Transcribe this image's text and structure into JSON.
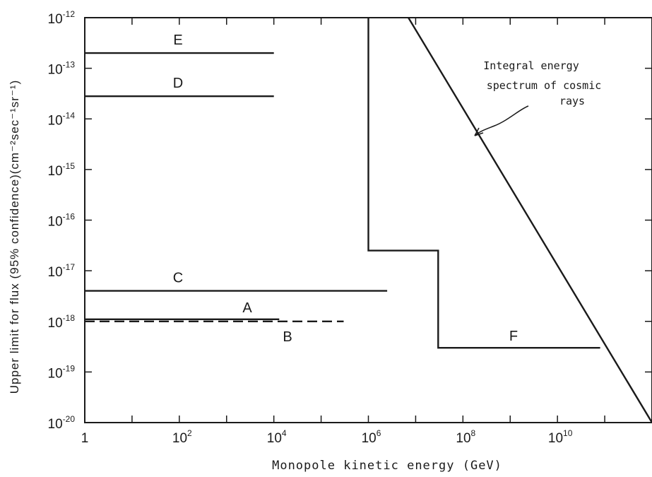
{
  "chart_data": {
    "type": "line",
    "xlabel": "Monopole kinetic energy (GeV)",
    "ylabel": "Upper limit for flux (95% confidence)(cm⁻²sec⁻¹sr⁻¹)",
    "xscale": "log",
    "yscale": "log",
    "xlim": [
      1,
      1000000000000.0
    ],
    "ylim": [
      1e-20,
      1e-12
    ],
    "xticks": [
      {
        "value": 1,
        "base": "1",
        "exp": ""
      },
      {
        "value": 100,
        "base": "10",
        "exp": "2"
      },
      {
        "value": 10000,
        "base": "10",
        "exp": "4"
      },
      {
        "value": 1000000,
        "base": "10",
        "exp": "6"
      },
      {
        "value": 100000000,
        "base": "10",
        "exp": "8"
      },
      {
        "value": 10000000000,
        "base": "10",
        "exp": "10"
      }
    ],
    "yticks": [
      {
        "value": 1e-12,
        "base": "10",
        "exp": "-12"
      },
      {
        "value": 1e-13,
        "base": "10",
        "exp": "-13"
      },
      {
        "value": 1e-14,
        "base": "10",
        "exp": "-14"
      },
      {
        "value": 1e-15,
        "base": "10",
        "exp": "-15"
      },
      {
        "value": 1e-16,
        "base": "10",
        "exp": "-16"
      },
      {
        "value": 1e-17,
        "base": "10",
        "exp": "-17"
      },
      {
        "value": 1e-18,
        "base": "10",
        "exp": "-18"
      },
      {
        "value": 1e-19,
        "base": "10",
        "exp": "-19"
      },
      {
        "value": 1e-20,
        "base": "10",
        "exp": "-20"
      }
    ],
    "series": [
      {
        "name": "E",
        "style": "solid",
        "points": [
          [
            1,
            2e-13
          ],
          [
            10000,
            2e-13
          ]
        ]
      },
      {
        "name": "D",
        "style": "solid",
        "points": [
          [
            1,
            2.8e-14
          ],
          [
            10000,
            2.8e-14
          ]
        ]
      },
      {
        "name": "C",
        "style": "solid",
        "points": [
          [
            1,
            4e-18
          ],
          [
            2500000,
            4e-18
          ]
        ]
      },
      {
        "name": "A",
        "style": "solid",
        "points": [
          [
            1,
            1.1e-18
          ],
          [
            13000,
            1.1e-18
          ]
        ]
      },
      {
        "name": "B",
        "style": "dashed",
        "points": [
          [
            1,
            1e-18
          ],
          [
            300000,
            1e-18
          ]
        ]
      },
      {
        "name": "F",
        "style": "solid",
        "points": [
          [
            1000000,
            1e-12
          ],
          [
            1000000,
            2.5e-17
          ],
          [
            30000000,
            2.5e-17
          ],
          [
            30000000,
            3e-19
          ],
          [
            80000000000,
            3e-19
          ]
        ]
      },
      {
        "name": "",
        "style": "solid",
        "points": [
          [
            7000000,
            1e-12
          ],
          [
            1000000000000.0,
            1e-20
          ]
        ]
      }
    ],
    "annotations": [
      {
        "text_lines": [
          "Integral energy",
          "spectrum of cosmic",
          "rays"
        ]
      }
    ],
    "grid": false,
    "legend": "none"
  }
}
